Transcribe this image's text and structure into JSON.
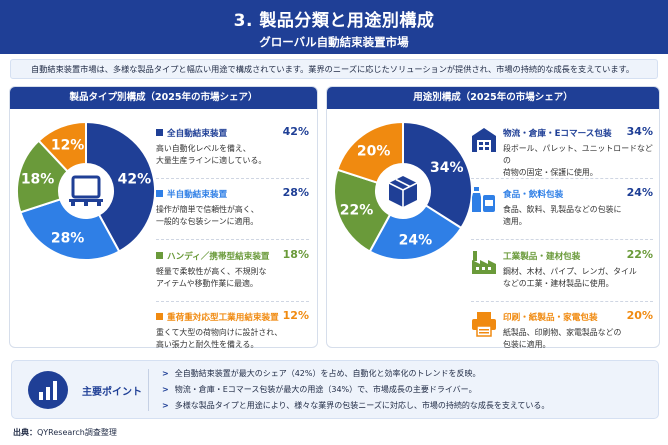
{
  "header": {
    "title": "3. 製品分類と用途別構成",
    "subtitle": "グローバル自動結束装置市場"
  },
  "intro": "自動結束装置市場は、多様な製品タイプと幅広い用途で構成されています。業界のニーズに応じたソリューションが提供され、市場の持続的な成長を支えています。",
  "colors": {
    "blue_dark": "#1f3f96",
    "blue": "#2f7fe6",
    "green": "#6a9a3a",
    "orange": "#f08a10"
  },
  "chart_data": [
    {
      "type": "pie",
      "title": "製品タイプ別構成（2025年の市場シェア）",
      "categories": [
        "全自動結束装置",
        "半自動結束装置",
        "ハンディ／携帯型結束装置",
        "重荷重対応型工業用結束装置"
      ],
      "values": [
        42,
        28,
        18,
        12
      ],
      "labels": [
        "42%",
        "28%",
        "18%",
        "12%"
      ],
      "colors": [
        "#1f3f96",
        "#2f7fe6",
        "#6a9a3a",
        "#f08a10"
      ],
      "center_icon": "pallet-icon",
      "descriptions": [
        "高い自動化レベルを備え、\n大量生産ラインに適している。",
        "操作が簡単で信頼性が高く、\n一般的な包装シーンに適用。",
        "軽量で柔軟性が高く、不規則な\nアイテムや移動作業に最適。",
        "重くて大型の荷物向けに設計され、\n高い張力と耐久性を備える。"
      ]
    },
    {
      "type": "pie",
      "title": "用途別構成（2025年の市場シェア）",
      "categories": [
        "物流・倉庫・Eコマース包装",
        "食品・飲料包装",
        "工業製品・建材包装",
        "印刷・紙製品・家電包装"
      ],
      "values": [
        34,
        24,
        22,
        20
      ],
      "labels": [
        "34%",
        "24%",
        "22%",
        "20%"
      ],
      "colors": [
        "#1f3f96",
        "#2f7fe6",
        "#6a9a3a",
        "#f08a10"
      ],
      "center_icon": "box-icon",
      "icons": [
        "warehouse-icon",
        "food-drink-icon",
        "factory-icon",
        "printer-icon"
      ],
      "descriptions": [
        "段ボール、パレット、ユニットロードなどの\n荷物の固定・保護に使用。",
        "食品、飲料、乳製品などの包装に\n適用。",
        "鋼材、木材、パイプ、レンガ、タイル\nなどの工業・建材製品に使用。",
        "紙製品、印刷物、家電製品などの\n包装に適用。"
      ]
    }
  ],
  "key_points": {
    "title": "主要ポイント",
    "icon": "bar-chart-icon",
    "items": [
      "全自動結束装置が最大のシェア（42%）を占め、自動化と効率化のトレンドを反映。",
      "物流・倉庫・Eコマース包装が最大の用途（34%）で、市場成長の主要ドライバー。",
      "多様な製品タイプと用途により、様々な業界の包装ニーズに対応し、市場の持続的な成長を支えている。"
    ]
  },
  "source": {
    "label": "出典：",
    "text": "QYResearch調査整理"
  }
}
